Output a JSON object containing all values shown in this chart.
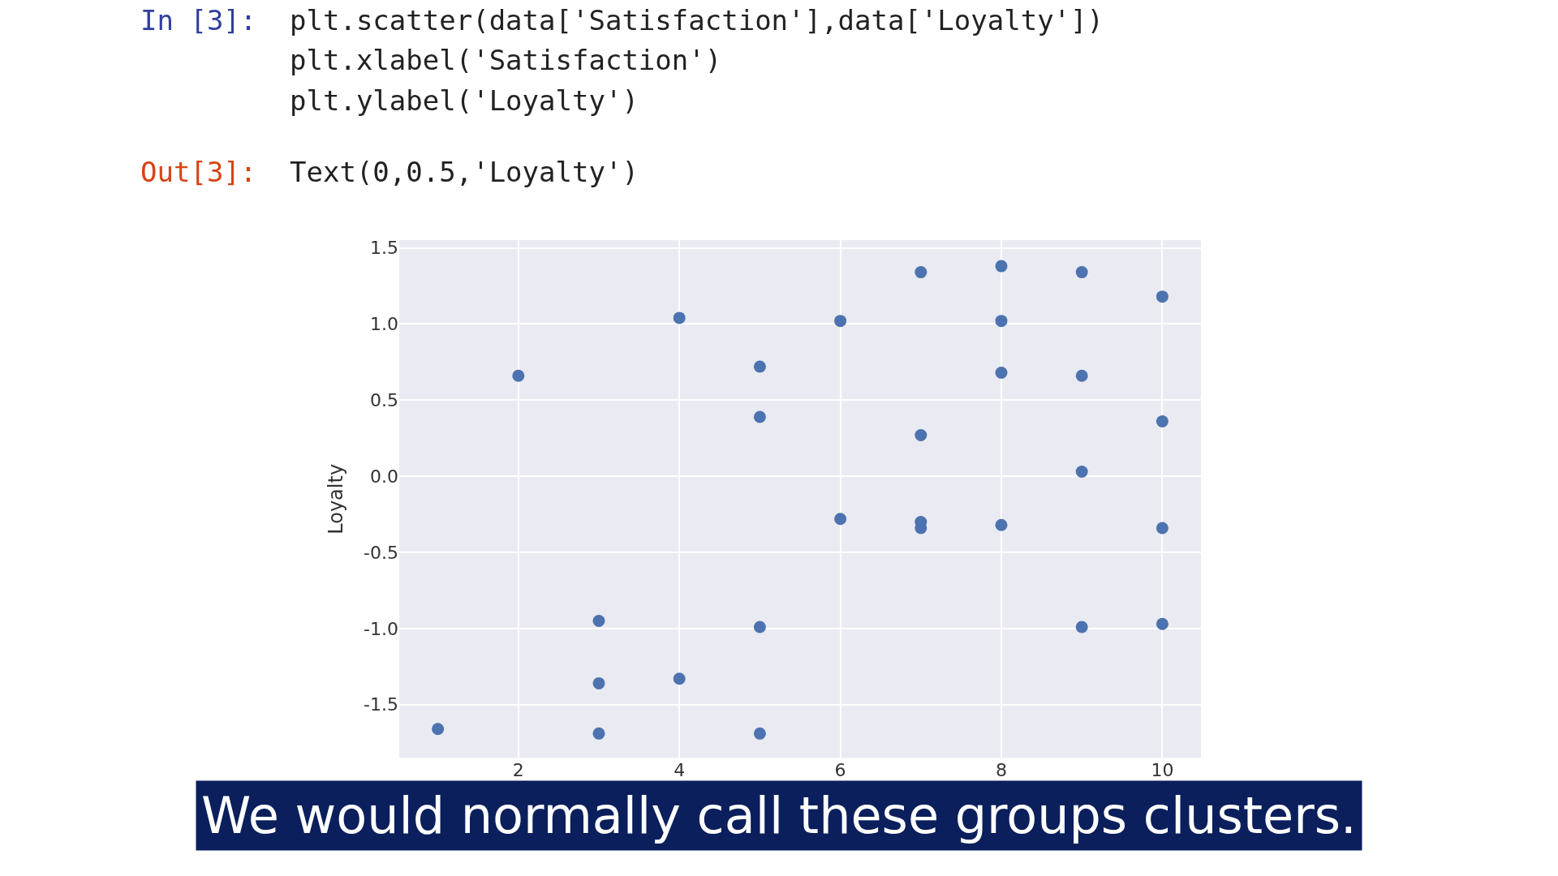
{
  "chart_data": {
    "type": "scatter",
    "ylabel": "Loyalty",
    "x": [
      1,
      2,
      3,
      3,
      3,
      4,
      4,
      5,
      5,
      5,
      5,
      6,
      6,
      7,
      7,
      7,
      7,
      8,
      8,
      8,
      8,
      9,
      9,
      9,
      9,
      10,
      10,
      10,
      10
    ],
    "values": [
      -1.66,
      0.66,
      -0.95,
      -1.36,
      -1.69,
      1.04,
      -1.33,
      0.72,
      0.39,
      -0.99,
      -1.69,
      1.02,
      -0.28,
      1.34,
      0.27,
      -0.3,
      -0.34,
      1.38,
      1.02,
      0.68,
      -0.32,
      1.34,
      0.66,
      0.03,
      -0.99,
      1.18,
      0.36,
      -0.34,
      -0.97
    ],
    "color": "#4c72b0",
    "marker": "circle",
    "xlim": [
      0.52,
      10.48
    ],
    "ylim": [
      -1.85,
      1.55
    ],
    "xticks": [
      2,
      4,
      6,
      8,
      10
    ],
    "yticks": [
      {
        "value": -1.5,
        "label": "-1.5"
      },
      {
        "value": -1,
        "label": "-1.0"
      },
      {
        "value": -0.5,
        "label": "-0.5"
      },
      {
        "value": 0,
        "label": "0.0"
      },
      {
        "value": 0.5,
        "label": "0.5"
      },
      {
        "value": 1,
        "label": "1.0"
      },
      {
        "value": 1.5,
        "label": "1.5"
      }
    ],
    "grid": true,
    "legend": false,
    "annotations": [
      "In [3]:",
      "plt.scatter(data['Satisfaction'],data['Loyalty'])",
      "plt.xlabel('Satisfaction')",
      "plt.ylabel('Loyalty')",
      "Out[3]:",
      "Text(0,0.5,'Loyalty')",
      "We would normally call these groups clusters."
    ]
  }
}
